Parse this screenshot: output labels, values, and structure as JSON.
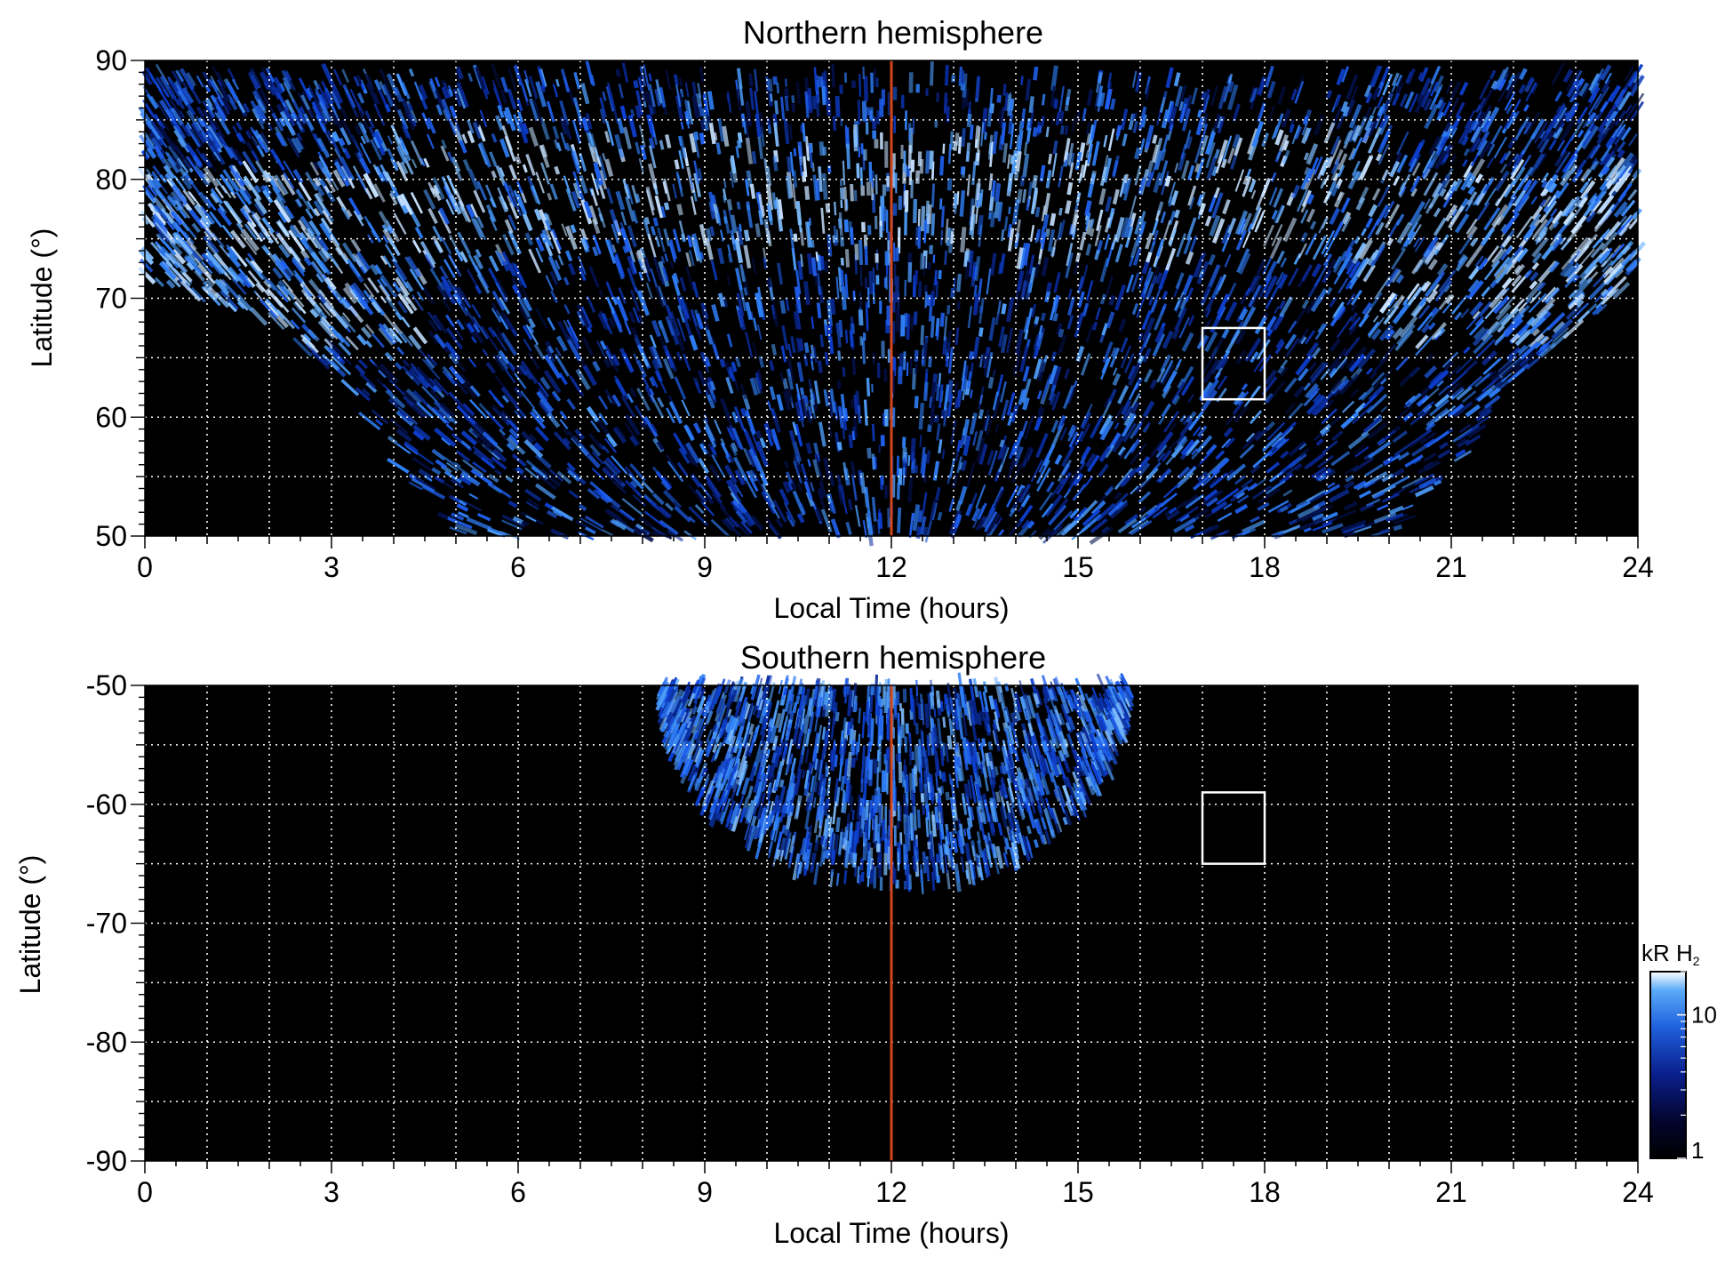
{
  "chart_data": [
    {
      "type": "heatmap",
      "title": "Northern hemisphere",
      "xlabel": "Local Time (hours)",
      "ylabel": "Latitude (°)",
      "xlim": [
        0,
        24
      ],
      "ylim": [
        50,
        90
      ],
      "xticks": [
        0,
        3,
        6,
        9,
        12,
        15,
        18,
        21,
        24
      ],
      "yticks": [
        50,
        60,
        70,
        80,
        90
      ],
      "x_grid_step": 1,
      "y_grid_step": 5,
      "grid": true,
      "noon_line": {
        "x": 12,
        "color": "#d2461e"
      },
      "highlight_box": {
        "x": [
          17,
          18
        ],
        "y": [
          61.5,
          67.5
        ],
        "color": "#ffffff"
      },
      "coverage_boundary_lat_by_hour": [
        71.5,
        70.0,
        68.0,
        64.0,
        56.0,
        50.0,
        50.0,
        50.0,
        50.0,
        50.0,
        50.0,
        50.0,
        50.0,
        50.0,
        50.0,
        50.0,
        50.0,
        50.0,
        50.0,
        50.0,
        50.0,
        55.0,
        63.0,
        67.5,
        71.0
      ],
      "bright_bands": [
        {
          "name": "",
          "x_range": [
            0,
            4.5
          ],
          "lat_range": [
            66,
            81
          ]
        },
        {
          "name": "",
          "x_range": [
            19.5,
            24
          ],
          "lat_range": [
            66,
            81
          ]
        },
        {
          "name": "",
          "x_range": [
            4,
            20
          ],
          "lat_range": [
            73,
            84
          ]
        }
      ]
    },
    {
      "type": "heatmap",
      "title": "Southern hemisphere",
      "xlabel": "Local Time (hours)",
      "ylabel": "Latitude (°)",
      "xlim": [
        0,
        24
      ],
      "ylim": [
        -90,
        -50
      ],
      "xticks": [
        0,
        3,
        6,
        9,
        12,
        15,
        18,
        21,
        24
      ],
      "yticks": [
        -50,
        -60,
        -70,
        -80,
        -90
      ],
      "x_grid_step": 1,
      "y_grid_step": 5,
      "grid": true,
      "noon_line": {
        "x": 12,
        "color": "#d2461e"
      },
      "highlight_box": {
        "x": [
          17,
          18
        ],
        "y": [
          -65,
          -59
        ],
        "color": "#ffffff"
      },
      "coverage_region": {
        "x_range": [
          8.3,
          15.8
        ],
        "lat_min_center": -67,
        "lat_max": -50
      }
    }
  ],
  "colorbar": {
    "label": "kR H₂",
    "label_main": "kR H",
    "label_sub": "2",
    "scale": "log",
    "range": [
      1,
      20
    ],
    "ticks": [
      1,
      10
    ],
    "tick_labels": [
      "1",
      "10"
    ],
    "colors": [
      "#000000",
      "#03052e",
      "#0a1f8c",
      "#1f5fdc",
      "#5aaaf8",
      "#ffffff"
    ]
  }
}
